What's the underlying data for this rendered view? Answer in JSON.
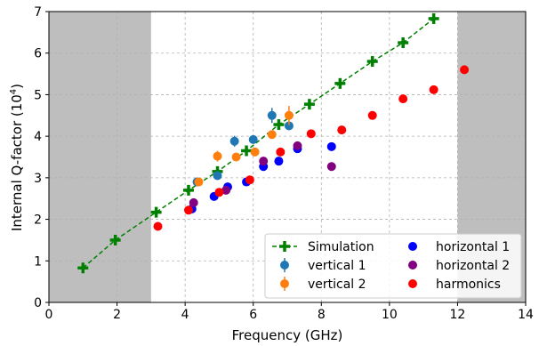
{
  "chart_data": {
    "type": "scatter",
    "title": "",
    "xlabel": "Frequency (GHz)",
    "ylabel_main": "Internal Q-factor (10",
    "ylabel_exp": "4",
    "ylabel_tail": ")",
    "xlim": [
      0,
      14
    ],
    "ylim": [
      0,
      7
    ],
    "x_ticks": [
      0,
      2,
      4,
      6,
      8,
      10,
      12,
      14
    ],
    "y_ticks": [
      0,
      1,
      2,
      3,
      4,
      5,
      6,
      7
    ],
    "grid": true,
    "legend_position": "lower-right",
    "shaded_regions": [
      {
        "x_from": 0,
        "x_to": 3,
        "color": "#bebebe"
      },
      {
        "x_from": 12,
        "x_to": 14,
        "color": "#bebebe"
      }
    ],
    "series": [
      {
        "name": "Simulation",
        "style": "dashed-line-plus",
        "color": "#008000",
        "points": [
          [
            1.0,
            0.83
          ],
          [
            1.95,
            1.5
          ],
          [
            3.15,
            2.17
          ],
          [
            4.1,
            2.7
          ],
          [
            4.95,
            3.15
          ],
          [
            5.8,
            3.65
          ],
          [
            6.75,
            4.28
          ],
          [
            7.65,
            4.77
          ],
          [
            8.55,
            5.27
          ],
          [
            9.5,
            5.8
          ],
          [
            10.4,
            6.25
          ],
          [
            11.3,
            6.83
          ]
        ]
      },
      {
        "name": "vertical 1",
        "style": "errorbar-dot",
        "color": "#1f77b4",
        "points": [
          [
            4.35,
            2.9,
            0.1
          ],
          [
            4.95,
            3.05,
            0.1
          ],
          [
            5.45,
            3.88,
            0.13
          ],
          [
            6.0,
            3.92,
            0.1
          ],
          [
            6.55,
            4.5,
            0.18
          ],
          [
            7.05,
            4.25,
            0.1
          ]
        ]
      },
      {
        "name": "vertical 2",
        "style": "errorbar-dot",
        "color": "#ff7f0e",
        "points": [
          [
            4.4,
            2.9,
            0.08
          ],
          [
            4.95,
            3.52,
            0.13
          ],
          [
            5.5,
            3.5,
            0.1
          ],
          [
            6.05,
            3.62,
            0.1
          ],
          [
            6.55,
            4.04,
            0.1
          ],
          [
            7.05,
            4.5,
            0.23
          ]
        ]
      },
      {
        "name": "horizontal 1",
        "style": "dot",
        "color": "#0000ff",
        "points": [
          [
            4.2,
            2.25
          ],
          [
            4.85,
            2.55
          ],
          [
            5.25,
            2.78
          ],
          [
            5.8,
            2.9
          ],
          [
            6.3,
            3.27
          ],
          [
            6.75,
            3.4
          ],
          [
            7.3,
            3.7
          ],
          [
            8.3,
            3.75
          ]
        ]
      },
      {
        "name": "horizontal 2",
        "style": "dot",
        "color": "#800080",
        "points": [
          [
            4.25,
            2.4
          ],
          [
            5.2,
            2.7
          ],
          [
            6.3,
            3.4
          ],
          [
            7.3,
            3.77
          ],
          [
            8.3,
            3.27
          ]
        ]
      },
      {
        "name": "harmonics",
        "style": "dot",
        "color": "#ff0000",
        "points": [
          [
            3.2,
            1.83
          ],
          [
            4.1,
            2.22
          ],
          [
            5.0,
            2.65
          ],
          [
            5.9,
            2.95
          ],
          [
            6.8,
            3.62
          ],
          [
            7.7,
            4.06
          ],
          [
            8.6,
            4.15
          ],
          [
            9.5,
            4.5
          ],
          [
            10.4,
            4.9
          ],
          [
            11.3,
            5.12
          ],
          [
            12.2,
            5.6
          ]
        ]
      }
    ]
  }
}
